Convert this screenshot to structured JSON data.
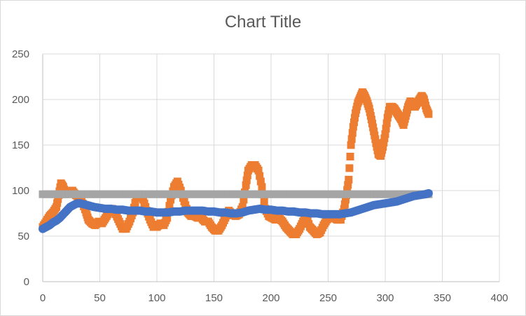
{
  "chart_data": {
    "type": "scatter",
    "title": "Chart Title",
    "xlabel": "",
    "ylabel": "",
    "xlim": [
      0,
      400
    ],
    "ylim": [
      0,
      250
    ],
    "x_ticks": [
      "0",
      "50",
      "100",
      "150",
      "200",
      "250",
      "300",
      "350",
      "400"
    ],
    "y_ticks": [
      "0",
      "50",
      "100",
      "150",
      "200",
      "250"
    ],
    "grid": true,
    "legend": "none",
    "series": [
      {
        "color": "#ED7D31",
        "marker": "square",
        "points": [
          [
            0,
            60
          ],
          [
            3,
            66
          ],
          [
            6,
            72
          ],
          [
            9,
            76
          ],
          [
            12,
            82
          ],
          [
            14,
            95
          ],
          [
            16,
            108
          ],
          [
            18,
            104
          ],
          [
            20,
            96
          ],
          [
            23,
            100
          ],
          [
            26,
            100
          ],
          [
            29,
            95
          ],
          [
            32,
            92
          ],
          [
            35,
            86
          ],
          [
            38,
            76
          ],
          [
            40,
            68
          ],
          [
            43,
            64
          ],
          [
            46,
            62
          ],
          [
            49,
            66
          ],
          [
            52,
            64
          ],
          [
            55,
            70
          ],
          [
            58,
            76
          ],
          [
            61,
            80
          ],
          [
            64,
            74
          ],
          [
            67,
            66
          ],
          [
            70,
            58
          ],
          [
            73,
            58
          ],
          [
            76,
            66
          ],
          [
            79,
            76
          ],
          [
            82,
            92
          ],
          [
            85,
            96
          ],
          [
            88,
            90
          ],
          [
            91,
            78
          ],
          [
            94,
            68
          ],
          [
            97,
            60
          ],
          [
            100,
            60
          ],
          [
            103,
            64
          ],
          [
            106,
            62
          ],
          [
            109,
            70
          ],
          [
            112,
            90
          ],
          [
            115,
            104
          ],
          [
            118,
            110
          ],
          [
            121,
            100
          ],
          [
            124,
            88
          ],
          [
            127,
            76
          ],
          [
            130,
            72
          ],
          [
            133,
            72
          ],
          [
            136,
            70
          ],
          [
            139,
            70
          ],
          [
            142,
            66
          ],
          [
            145,
            66
          ],
          [
            148,
            60
          ],
          [
            151,
            56
          ],
          [
            154,
            56
          ],
          [
            157,
            62
          ],
          [
            160,
            70
          ],
          [
            163,
            78
          ],
          [
            166,
            74
          ],
          [
            169,
            72
          ],
          [
            172,
            74
          ],
          [
            175,
            82
          ],
          [
            178,
            106
          ],
          [
            180,
            122
          ],
          [
            183,
            128
          ],
          [
            186,
            128
          ],
          [
            189,
            122
          ],
          [
            192,
            104
          ],
          [
            195,
            80
          ],
          [
            198,
            72
          ],
          [
            201,
            70
          ],
          [
            204,
            68
          ],
          [
            207,
            70
          ],
          [
            210,
            66
          ],
          [
            213,
            60
          ],
          [
            216,
            56
          ],
          [
            219,
            52
          ],
          [
            222,
            52
          ],
          [
            225,
            58
          ],
          [
            228,
            66
          ],
          [
            231,
            70
          ],
          [
            234,
            60
          ],
          [
            237,
            56
          ],
          [
            240,
            52
          ],
          [
            243,
            54
          ],
          [
            246,
            62
          ],
          [
            249,
            68
          ],
          [
            252,
            72
          ],
          [
            255,
            70
          ],
          [
            258,
            68
          ],
          [
            261,
            68
          ],
          [
            264,
            80
          ],
          [
            266,
            95
          ],
          [
            268,
            112
          ],
          [
            270,
            150
          ],
          [
            272,
            170
          ],
          [
            274,
            185
          ],
          [
            276,
            196
          ],
          [
            278,
            202
          ],
          [
            280,
            208
          ],
          [
            282,
            204
          ],
          [
            284,
            198
          ],
          [
            286,
            190
          ],
          [
            288,
            178
          ],
          [
            290,
            165
          ],
          [
            292,
            152
          ],
          [
            294,
            140
          ],
          [
            296,
            138
          ],
          [
            298,
            148
          ],
          [
            300,
            162
          ],
          [
            302,
            180
          ],
          [
            304,
            192
          ],
          [
            306,
            192
          ],
          [
            308,
            190
          ],
          [
            310,
            186
          ],
          [
            312,
            182
          ],
          [
            314,
            178
          ],
          [
            316,
            172
          ],
          [
            318,
            182
          ],
          [
            320,
            192
          ],
          [
            322,
            198
          ],
          [
            324,
            194
          ],
          [
            326,
            192
          ],
          [
            328,
            196
          ],
          [
            330,
            200
          ],
          [
            332,
            204
          ],
          [
            334,
            200
          ],
          [
            336,
            190
          ],
          [
            338,
            184
          ]
        ]
      },
      {
        "color": "#A5A5A5",
        "marker": "square",
        "points": [
          [
            0,
            96
          ],
          [
            10,
            96
          ],
          [
            20,
            96
          ],
          [
            30,
            96
          ],
          [
            40,
            96
          ],
          [
            50,
            96
          ],
          [
            60,
            96
          ],
          [
            70,
            96
          ],
          [
            80,
            96
          ],
          [
            90,
            96
          ],
          [
            100,
            96
          ],
          [
            110,
            96
          ],
          [
            120,
            96
          ],
          [
            130,
            96
          ],
          [
            140,
            96
          ],
          [
            150,
            96
          ],
          [
            160,
            96
          ],
          [
            170,
            96
          ],
          [
            180,
            96
          ],
          [
            190,
            96
          ],
          [
            200,
            96
          ],
          [
            210,
            96
          ],
          [
            220,
            96
          ],
          [
            230,
            96
          ],
          [
            240,
            96
          ],
          [
            250,
            96
          ],
          [
            260,
            96
          ],
          [
            270,
            96
          ],
          [
            280,
            96
          ],
          [
            290,
            96
          ],
          [
            300,
            96
          ],
          [
            310,
            96
          ],
          [
            320,
            96
          ],
          [
            330,
            96
          ],
          [
            338,
            96
          ]
        ]
      },
      {
        "color": "#4472C4",
        "marker": "circle",
        "points": [
          [
            0,
            58
          ],
          [
            3,
            60
          ],
          [
            6,
            62
          ],
          [
            9,
            65
          ],
          [
            12,
            67
          ],
          [
            15,
            70
          ],
          [
            18,
            74
          ],
          [
            21,
            78
          ],
          [
            24,
            82
          ],
          [
            27,
            84
          ],
          [
            30,
            86
          ],
          [
            33,
            86
          ],
          [
            36,
            85
          ],
          [
            39,
            84
          ],
          [
            42,
            83
          ],
          [
            45,
            82
          ],
          [
            50,
            81
          ],
          [
            55,
            80
          ],
          [
            60,
            80
          ],
          [
            65,
            79
          ],
          [
            70,
            79
          ],
          [
            75,
            78
          ],
          [
            80,
            78
          ],
          [
            85,
            78
          ],
          [
            90,
            77
          ],
          [
            95,
            77
          ],
          [
            100,
            76
          ],
          [
            105,
            76
          ],
          [
            110,
            76
          ],
          [
            115,
            77
          ],
          [
            120,
            77
          ],
          [
            125,
            78
          ],
          [
            130,
            78
          ],
          [
            135,
            78
          ],
          [
            140,
            78
          ],
          [
            145,
            77
          ],
          [
            150,
            77
          ],
          [
            155,
            76
          ],
          [
            160,
            76
          ],
          [
            165,
            75
          ],
          [
            170,
            75
          ],
          [
            175,
            76
          ],
          [
            180,
            78
          ],
          [
            185,
            79
          ],
          [
            190,
            80
          ],
          [
            195,
            79
          ],
          [
            200,
            79
          ],
          [
            205,
            78
          ],
          [
            210,
            78
          ],
          [
            215,
            77
          ],
          [
            220,
            77
          ],
          [
            225,
            76
          ],
          [
            230,
            76
          ],
          [
            235,
            75
          ],
          [
            240,
            75
          ],
          [
            245,
            74
          ],
          [
            250,
            74
          ],
          [
            255,
            74
          ],
          [
            260,
            74
          ],
          [
            265,
            75
          ],
          [
            270,
            76
          ],
          [
            275,
            78
          ],
          [
            280,
            80
          ],
          [
            285,
            82
          ],
          [
            290,
            84
          ],
          [
            295,
            85
          ],
          [
            300,
            86
          ],
          [
            305,
            87
          ],
          [
            310,
            88
          ],
          [
            315,
            90
          ],
          [
            320,
            92
          ],
          [
            325,
            94
          ],
          [
            330,
            95
          ],
          [
            335,
            96
          ],
          [
            338,
            97
          ]
        ]
      }
    ]
  }
}
